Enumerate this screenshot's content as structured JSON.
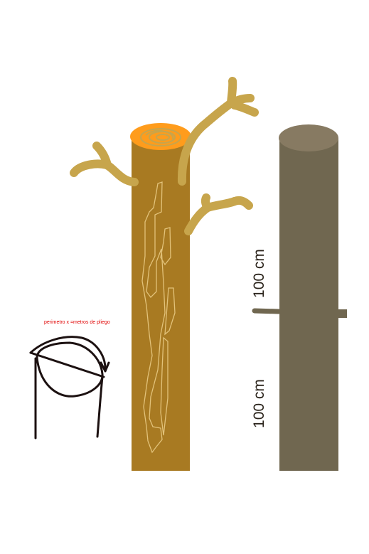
{
  "annotation": {
    "perimeter_note": "perimetro x =metros de pliego"
  },
  "measurements": {
    "upper_segment": "100 cm",
    "lower_segment": "100 cm"
  },
  "colors": {
    "log_trunk": "#a87a22",
    "log_top": "#ff9c1c",
    "branches": "#c7a54c",
    "bark_veins": "#e2c27a",
    "post_body": "#706750",
    "post_top": "#877a62",
    "note_text": "#e00000",
    "measure_text": "#2b241c",
    "sketch_ink": "#1c1111"
  }
}
